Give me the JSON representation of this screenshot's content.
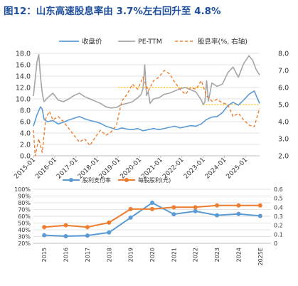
{
  "title": "图12：山东高速股息率由 3.7%左右回升至 4.8%",
  "colors": {
    "close": "#5b9bd5",
    "pe": "#a5a5a5",
    "dividend_yield": "#ed7d31",
    "yellow_ref": "#ffc000",
    "grid": "#d9d9d9",
    "title": "#1f4e9c"
  },
  "chart_data": [
    {
      "type": "line",
      "legend": [
        "收盘价",
        "PE-TTM",
        "股息率(%, 右轴)"
      ],
      "legend_position": "top",
      "x_ticks": [
        "2015-01",
        "2016-01",
        "2017-01",
        "2018-01",
        "2019-01",
        "2020-01",
        "2021-01",
        "2022-01",
        "2023-01",
        "2024-01",
        "2025-01"
      ],
      "xlim": [
        "2015-01",
        "2025-09"
      ],
      "y_left_ticks": [
        "0.0",
        "2.0",
        "4.0",
        "6.0",
        "8.0",
        "10.0",
        "12.0",
        "14.0",
        "16.0",
        "18.0"
      ],
      "ylim_left": [
        0,
        18
      ],
      "y_right_ticks": [
        "2.0",
        "3.0",
        "4.0",
        "5.0",
        "6.0",
        "7.0",
        "8.0"
      ],
      "ylim_right": [
        2,
        8
      ],
      "grid": true,
      "series": [
        {
          "name": "收盘价",
          "axis": "left",
          "x": [
            "2015-01",
            "2015-03",
            "2015-05",
            "2015-06",
            "2015-07",
            "2015-09",
            "2015-12",
            "2016-03",
            "2016-06",
            "2016-09",
            "2016-12",
            "2017-03",
            "2017-06",
            "2017-09",
            "2017-12",
            "2018-03",
            "2018-06",
            "2018-09",
            "2018-12",
            "2019-03",
            "2019-06",
            "2019-09",
            "2019-12",
            "2020-03",
            "2020-06",
            "2020-09",
            "2020-12",
            "2021-03",
            "2021-06",
            "2021-09",
            "2021-12",
            "2022-03",
            "2022-06",
            "2022-09",
            "2022-12",
            "2023-03",
            "2023-06",
            "2023-09",
            "2023-12",
            "2024-03",
            "2024-06",
            "2024-09",
            "2024-12",
            "2025-03",
            "2025-06",
            "2025-09"
          ],
          "values": [
            5.2,
            7.2,
            8.6,
            8.2,
            6.4,
            6.0,
            6.2,
            5.6,
            5.9,
            6.3,
            6.6,
            6.9,
            6.5,
            6.2,
            6.0,
            5.7,
            5.2,
            4.9,
            4.6,
            4.9,
            4.7,
            4.6,
            4.8,
            4.4,
            4.6,
            4.8,
            4.6,
            4.8,
            5.0,
            5.2,
            4.9,
            5.1,
            5.3,
            5.2,
            5.6,
            6.4,
            6.8,
            6.9,
            7.6,
            8.8,
            9.4,
            8.9,
            9.8,
            10.8,
            11.4,
            9.2
          ]
        },
        {
          "name": "PE-TTM",
          "axis": "left",
          "x": [
            "2015-01",
            "2015-03",
            "2015-04",
            "2015-05",
            "2015-06",
            "2015-07",
            "2015-09",
            "2015-12",
            "2016-03",
            "2016-06",
            "2016-09",
            "2016-12",
            "2017-03",
            "2017-06",
            "2017-09",
            "2017-12",
            "2018-03",
            "2018-06",
            "2018-09",
            "2018-12",
            "2019-03",
            "2019-06",
            "2019-09",
            "2019-12",
            "2020-02",
            "2020-03",
            "2020-04",
            "2020-05",
            "2020-06",
            "2020-07",
            "2020-09",
            "2020-12",
            "2021-03",
            "2021-06",
            "2021-09",
            "2021-12",
            "2022-03",
            "2022-06",
            "2022-09",
            "2022-12",
            "2023-01",
            "2023-02",
            "2023-03",
            "2023-04",
            "2023-06",
            "2023-09",
            "2023-12",
            "2024-03",
            "2024-06",
            "2024-09",
            "2024-12",
            "2025-03",
            "2025-05",
            "2025-07",
            "2025-09"
          ],
          "values": [
            10.5,
            16.5,
            17.8,
            14.0,
            11.0,
            9.5,
            10.2,
            11.0,
            9.8,
            9.5,
            10.0,
            10.6,
            11.0,
            10.4,
            10.0,
            9.6,
            9.2,
            8.6,
            8.4,
            8.5,
            9.0,
            9.2,
            9.5,
            10.2,
            10.8,
            11.8,
            16.0,
            10.6,
            11.3,
            9.2,
            10.0,
            10.2,
            10.8,
            11.0,
            11.4,
            11.8,
            12.0,
            11.6,
            11.2,
            9.8,
            9.0,
            9.4,
            13.2,
            9.6,
            12.8,
            12.2,
            12.6,
            14.6,
            15.6,
            13.8,
            16.2,
            17.6,
            16.8,
            15.2,
            14.2
          ]
        },
        {
          "name": "股息率(%, 右轴)",
          "axis": "right",
          "x": [
            "2015-01",
            "2015-02",
            "2015-04",
            "2015-06",
            "2015-08",
            "2015-10",
            "2015-12",
            "2016-03",
            "2016-06",
            "2016-09",
            "2016-12",
            "2017-03",
            "2017-06",
            "2017-09",
            "2017-12",
            "2018-03",
            "2018-06",
            "2018-09",
            "2018-12",
            "2019-03",
            "2019-06",
            "2019-09",
            "2019-12",
            "2020-03",
            "2020-06",
            "2020-09",
            "2020-12",
            "2021-03",
            "2021-06",
            "2021-09",
            "2021-12",
            "2022-03",
            "2022-06",
            "2022-09",
            "2022-12",
            "2023-03",
            "2023-06",
            "2023-09",
            "2023-12",
            "2024-03",
            "2024-06",
            "2024-09",
            "2024-12",
            "2025-03",
            "2025-06",
            "2025-09"
          ],
          "values": [
            3.5,
            2.0,
            3.0,
            2.2,
            4.2,
            4.6,
            4.1,
            4.3,
            4.0,
            3.6,
            3.2,
            2.8,
            3.0,
            2.6,
            3.1,
            3.5,
            3.2,
            3.4,
            3.8,
            5.2,
            5.6,
            6.2,
            5.9,
            6.6,
            5.8,
            6.4,
            6.6,
            7.0,
            6.8,
            6.3,
            5.9,
            5.6,
            6.0,
            5.9,
            6.4,
            5.5,
            5.2,
            5.3,
            5.1,
            5.0,
            4.3,
            4.5,
            4.1,
            3.8,
            3.7,
            4.8
          ]
        }
      ],
      "reference_lines": [
        {
          "axis": "right",
          "value": 6.0,
          "from": "2019-01",
          "to": "2023-01"
        },
        {
          "axis": "right",
          "value": 5.0,
          "from": "2023-01",
          "to": "2025-09"
        }
      ]
    },
    {
      "type": "line",
      "legend": [
        "股利支付率",
        "每股股利(元)"
      ],
      "legend_position": "top-left",
      "categories": [
        "2015",
        "2016",
        "2017",
        "2018",
        "2019",
        "2020",
        "2021",
        "2022",
        "2023",
        "2024",
        "2025E"
      ],
      "y_left_ticks": [
        "20%",
        "30%",
        "40%",
        "50%",
        "60%",
        "70%",
        "80%",
        "90%",
        "100%"
      ],
      "ylim_left": [
        20,
        100
      ],
      "y_right_ticks": [
        "0",
        "0.1",
        "0.2",
        "0.3",
        "0.4",
        "0.5",
        "0.6"
      ],
      "ylim_right": [
        0,
        0.6
      ],
      "grid": true,
      "series": [
        {
          "name": "股利支付率",
          "axis": "left",
          "values": [
            32,
            30.5,
            31.5,
            36,
            58,
            80,
            63,
            67.5,
            61.5,
            63.5,
            60.5
          ]
        },
        {
          "name": "每股股利(元)",
          "axis": "right",
          "values": [
            0.18,
            0.2,
            0.18,
            0.23,
            0.38,
            0.38,
            0.4,
            0.4,
            0.42,
            0.42,
            0.42
          ]
        }
      ]
    }
  ]
}
